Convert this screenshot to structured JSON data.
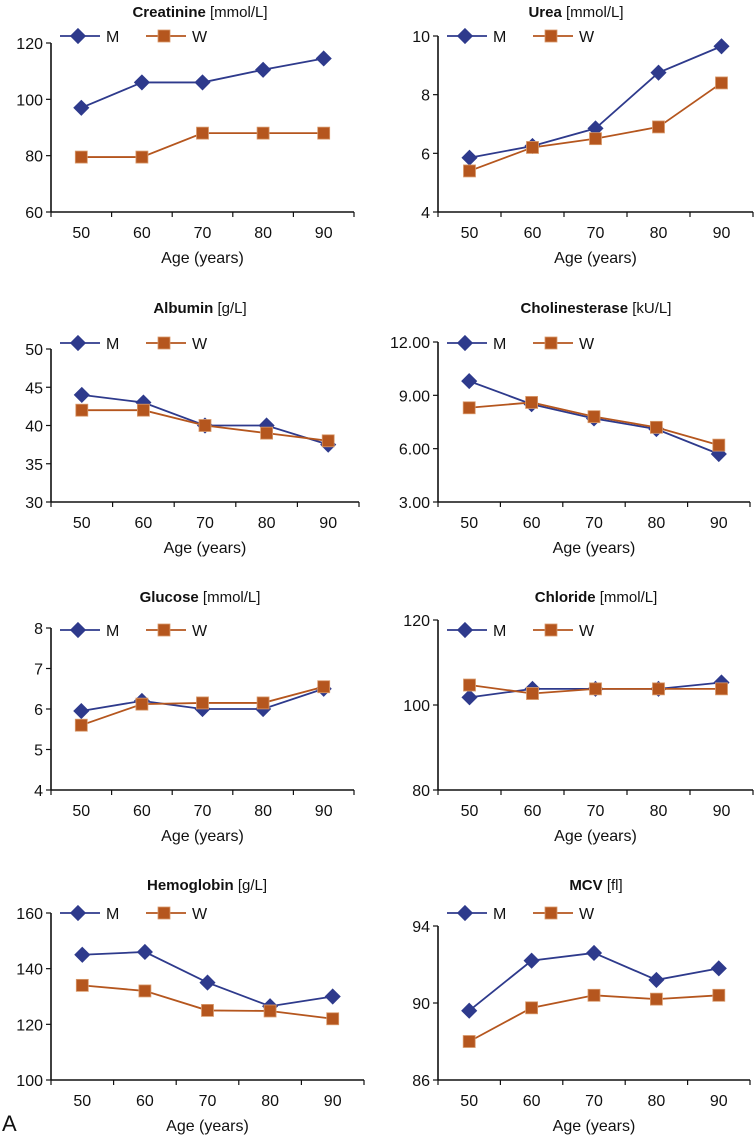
{
  "figure": {
    "panel_label": "A",
    "legend": [
      {
        "name": "M",
        "marker": "diamond",
        "color": "#2e3a8c"
      },
      {
        "name": "W",
        "marker": "square",
        "color": "#b5561e"
      }
    ]
  },
  "chart_data": [
    {
      "type": "line",
      "title": "Creatinine",
      "unit": "[mmol/L]",
      "xlabel": "Age (years)",
      "ylabel": "",
      "categories": [
        "50",
        "60",
        "70",
        "80",
        "90"
      ],
      "yticks": [
        "60",
        "80",
        "100",
        "120"
      ],
      "ylim": [
        60,
        120
      ],
      "legend_position": "top",
      "grid": false,
      "series": [
        {
          "name": "M",
          "values": [
            97,
            106,
            106,
            110.5,
            114.5
          ]
        },
        {
          "name": "W",
          "values": [
            79.5,
            79.5,
            88,
            88,
            88
          ]
        }
      ]
    },
    {
      "type": "line",
      "title": "Urea",
      "unit": "[mmol/L]",
      "xlabel": "Age (years)",
      "ylabel": "",
      "categories": [
        "50",
        "60",
        "70",
        "80",
        "90"
      ],
      "yticks": [
        "4",
        "6",
        "8",
        "10"
      ],
      "ylim": [
        4,
        10
      ],
      "legend_position": "top",
      "grid": false,
      "series": [
        {
          "name": "M",
          "values": [
            5.85,
            6.25,
            6.85,
            8.75,
            9.65
          ]
        },
        {
          "name": "W",
          "values": [
            5.4,
            6.2,
            6.5,
            6.9,
            8.4
          ]
        }
      ]
    },
    {
      "type": "line",
      "title": "Albumin",
      "unit": "[g/L]",
      "xlabel": "Age (years)",
      "ylabel": "",
      "categories": [
        "50",
        "60",
        "70",
        "80",
        "90"
      ],
      "yticks": [
        "30",
        "35",
        "40",
        "45",
        "50"
      ],
      "ylim": [
        30,
        50
      ],
      "legend_position": "top",
      "grid": false,
      "series": [
        {
          "name": "M",
          "values": [
            44,
            43,
            40,
            40,
            37.5
          ]
        },
        {
          "name": "W",
          "values": [
            42,
            42,
            40,
            39,
            38
          ]
        }
      ]
    },
    {
      "type": "line",
      "title": "Cholinesterase",
      "unit": "[kU/L]",
      "xlabel": "Age (years)",
      "ylabel": "",
      "categories": [
        "50",
        "60",
        "70",
        "80",
        "90"
      ],
      "yticks": [
        "3.00",
        "6.00",
        "9.00",
        "12.00"
      ],
      "ylim": [
        3,
        12
      ],
      "legend_position": "top",
      "grid": false,
      "series": [
        {
          "name": "M",
          "values": [
            9.8,
            8.5,
            7.7,
            7.1,
            5.7
          ]
        },
        {
          "name": "W",
          "values": [
            8.3,
            8.6,
            7.8,
            7.2,
            6.2
          ]
        }
      ]
    },
    {
      "type": "line",
      "title": "Glucose",
      "unit": "[mmol/L]",
      "xlabel": "Age (years)",
      "ylabel": "",
      "categories": [
        "50",
        "60",
        "70",
        "80",
        "90"
      ],
      "yticks": [
        "4",
        "5",
        "6",
        "7",
        "8"
      ],
      "ylim": [
        4,
        8
      ],
      "legend_position": "top",
      "grid": false,
      "series": [
        {
          "name": "M",
          "values": [
            5.95,
            6.2,
            6.0,
            6.0,
            6.5
          ]
        },
        {
          "name": "W",
          "values": [
            5.6,
            6.12,
            6.15,
            6.15,
            6.55
          ]
        }
      ]
    },
    {
      "type": "line",
      "title": "Chloride",
      "unit": "[mmol/L]",
      "xlabel": "Age (years)",
      "ylabel": "",
      "categories": [
        "50",
        "60",
        "70",
        "80",
        "90"
      ],
      "yticks": [
        "80",
        "100",
        "120"
      ],
      "ylim": [
        80,
        120
      ],
      "legend_position": "top",
      "grid": false,
      "series": [
        {
          "name": "M",
          "values": [
            101.8,
            103.8,
            103.8,
            103.8,
            105.3
          ]
        },
        {
          "name": "W",
          "values": [
            104.7,
            102.7,
            103.8,
            103.8,
            103.8
          ]
        }
      ]
    },
    {
      "type": "line",
      "title": "Hemoglobin",
      "unit": "[g/L]",
      "xlabel": "Age (years)",
      "ylabel": "",
      "categories": [
        "50",
        "60",
        "70",
        "80",
        "90"
      ],
      "yticks": [
        "100",
        "120",
        "140",
        "160"
      ],
      "ylim": [
        100,
        160
      ],
      "legend_position": "top",
      "grid": false,
      "series": [
        {
          "name": "M",
          "values": [
            145,
            146,
            135,
            126.5,
            130
          ]
        },
        {
          "name": "W",
          "values": [
            134,
            132,
            125,
            124.8,
            122
          ]
        }
      ]
    },
    {
      "type": "line",
      "title": "MCV",
      "unit": "[fl]",
      "xlabel": "Age (years)",
      "ylabel": "",
      "categories": [
        "50",
        "60",
        "70",
        "80",
        "90"
      ],
      "yticks": [
        "86",
        "90",
        "94"
      ],
      "ylim": [
        86,
        94
      ],
      "legend_position": "top",
      "grid": false,
      "series": [
        {
          "name": "M",
          "values": [
            89.6,
            92.2,
            92.6,
            91.2,
            91.8
          ]
        },
        {
          "name": "W",
          "values": [
            88.0,
            89.75,
            90.4,
            90.2,
            90.4
          ]
        }
      ]
    }
  ]
}
